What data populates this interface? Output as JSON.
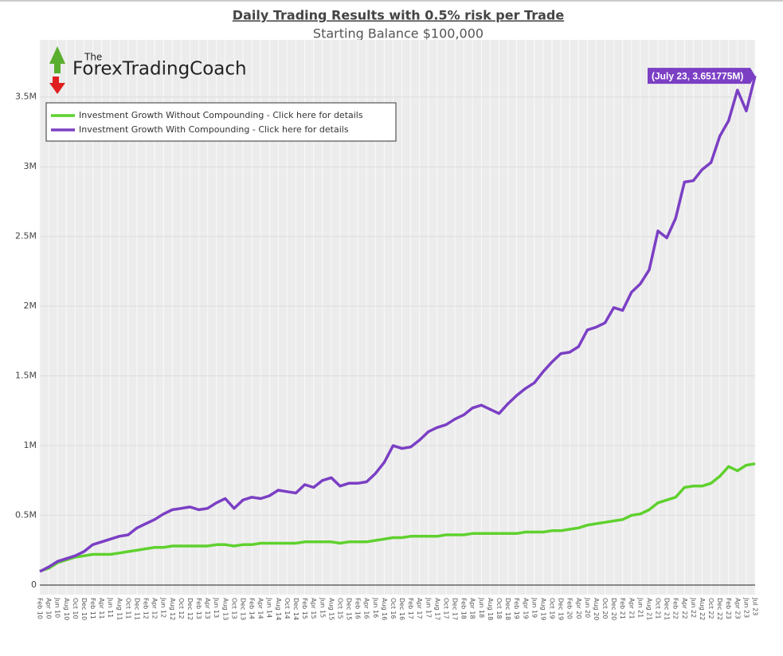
{
  "logo": {
    "small": "The",
    "name": "ForexTradingCoach"
  },
  "chart_data": {
    "type": "line",
    "title": "Daily Trading Results with 0.5% risk per Trade",
    "subtitle": "Starting Balance $100,000",
    "annotation": "(July 23, 3.651775M)",
    "categories": [
      "Feb 10",
      "Apr 10",
      "Jun 10",
      "Aug 10",
      "Oct 10",
      "Dec 10",
      "Feb 11",
      "Apr 11",
      "Jun 11",
      "Aug 11",
      "Oct 11",
      "Dec 11",
      "Feb 12",
      "Apr 12",
      "Jun 12",
      "Aug 12",
      "Oct 12",
      "Dec 12",
      "Feb 13",
      "Apr 13",
      "Jun 13",
      "Aug 13",
      "Oct 13",
      "Dec 13",
      "Feb 14",
      "Apr 14",
      "Jun 14",
      "Aug 14",
      "Oct 14",
      "Dec 14",
      "Feb 15",
      "Apr 15",
      "Jun 15",
      "Aug 15",
      "Oct 15",
      "Dec 15",
      "Feb 16",
      "Apr 16",
      "Jun 16",
      "Aug 16",
      "Oct 16",
      "Dec 16",
      "Feb 17",
      "Apr 17",
      "Jun 17",
      "Aug 17",
      "Oct 17",
      "Dec 17",
      "Feb 18",
      "Apr 18",
      "Jun 18",
      "Aug 18",
      "Oct 18",
      "Dec 18",
      "Feb 19",
      "Apr 19",
      "Jun 19",
      "Aug 19",
      "Oct 19",
      "Dec 19",
      "Feb 20",
      "Apr 20",
      "Jun 20",
      "Aug 20",
      "Oct 20",
      "Dec 20",
      "Feb 21",
      "Apr 21",
      "Jun 21",
      "Aug 21",
      "Oct 21",
      "Dec 21",
      "Feb 22",
      "Apr 22",
      "Jun 22",
      "Aug 22",
      "Oct 22",
      "Dec 22",
      "Feb 23",
      "Apr 23",
      "Jun 23",
      "Jul 23"
    ],
    "series": [
      {
        "name": "Investment Growth Without Compounding - Click here for details",
        "color": "#5fd12e",
        "values": [
          0.1,
          0.12,
          0.16,
          0.18,
          0.2,
          0.21,
          0.22,
          0.22,
          0.22,
          0.23,
          0.24,
          0.25,
          0.26,
          0.27,
          0.27,
          0.28,
          0.28,
          0.28,
          0.28,
          0.28,
          0.29,
          0.29,
          0.28,
          0.29,
          0.29,
          0.3,
          0.3,
          0.3,
          0.3,
          0.3,
          0.31,
          0.31,
          0.31,
          0.31,
          0.3,
          0.31,
          0.31,
          0.31,
          0.32,
          0.33,
          0.34,
          0.34,
          0.35,
          0.35,
          0.35,
          0.35,
          0.36,
          0.36,
          0.36,
          0.37,
          0.37,
          0.37,
          0.37,
          0.37,
          0.37,
          0.38,
          0.38,
          0.38,
          0.39,
          0.39,
          0.4,
          0.41,
          0.43,
          0.44,
          0.45,
          0.46,
          0.47,
          0.5,
          0.51,
          0.54,
          0.59,
          0.61,
          0.63,
          0.7,
          0.71,
          0.71,
          0.73,
          0.78,
          0.85,
          0.82,
          0.86,
          0.87
        ]
      },
      {
        "name": "Investment Growth With Compounding - Click here for details",
        "color": "#7b3fc4",
        "values": [
          0.097,
          0.13,
          0.17,
          0.19,
          0.21,
          0.24,
          0.29,
          0.31,
          0.33,
          0.35,
          0.36,
          0.41,
          0.44,
          0.47,
          0.51,
          0.54,
          0.55,
          0.56,
          0.54,
          0.55,
          0.59,
          0.62,
          0.55,
          0.61,
          0.63,
          0.62,
          0.64,
          0.68,
          0.67,
          0.66,
          0.72,
          0.7,
          0.75,
          0.77,
          0.71,
          0.73,
          0.73,
          0.74,
          0.8,
          0.88,
          1.0,
          0.98,
          0.99,
          1.04,
          1.1,
          1.13,
          1.15,
          1.19,
          1.22,
          1.27,
          1.29,
          1.26,
          1.23,
          1.3,
          1.36,
          1.41,
          1.45,
          1.53,
          1.6,
          1.66,
          1.67,
          1.71,
          1.83,
          1.85,
          1.88,
          1.99,
          1.97,
          2.1,
          2.16,
          2.26,
          2.54,
          2.49,
          2.63,
          2.89,
          2.9,
          2.98,
          3.03,
          3.22,
          3.33,
          3.55,
          3.4,
          3.651775
        ]
      }
    ],
    "ylim": [
      0,
      3.91
    ],
    "yticks": [
      0,
      {
        "value": 0.5,
        "label": "0.5M"
      },
      {
        "value": 1,
        "label": "1M"
      },
      {
        "value": 1.5,
        "label": "1.5M"
      },
      {
        "value": 2,
        "label": "2M"
      },
      {
        "value": 2.5,
        "label": "2.5M"
      },
      {
        "value": 3,
        "label": "3M"
      },
      {
        "value": 3.5,
        "label": "3.5M"
      }
    ],
    "grid": true,
    "legend": "upper-left"
  }
}
